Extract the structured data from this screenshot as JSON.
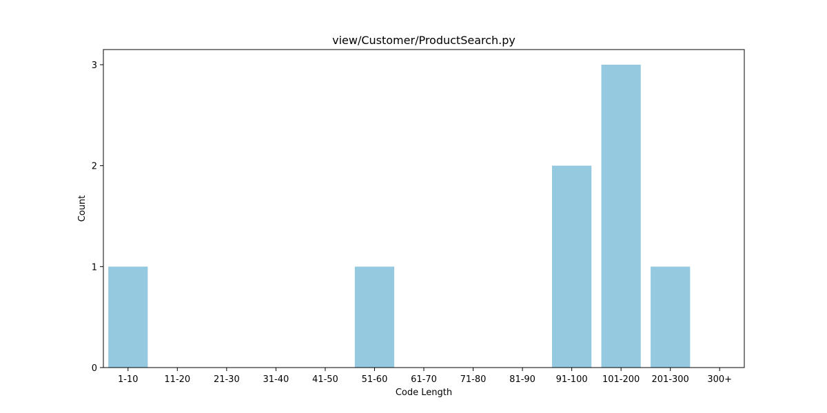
{
  "chart_data": {
    "type": "bar",
    "title": "view/Customer/ProductSearch.py",
    "xlabel": "Code Length",
    "ylabel": "Count",
    "categories": [
      "1-10",
      "11-20",
      "21-30",
      "31-40",
      "41-50",
      "51-60",
      "61-70",
      "71-80",
      "81-90",
      "91-100",
      "101-200",
      "201-300",
      "300+"
    ],
    "values": [
      1,
      0,
      0,
      0,
      0,
      1,
      0,
      0,
      0,
      2,
      3,
      1,
      0
    ],
    "yticks": [
      0,
      1,
      2,
      3
    ],
    "ylim": [
      0,
      3.15
    ],
    "grid": false,
    "legend": "none",
    "bar_color": "#95c9df"
  }
}
